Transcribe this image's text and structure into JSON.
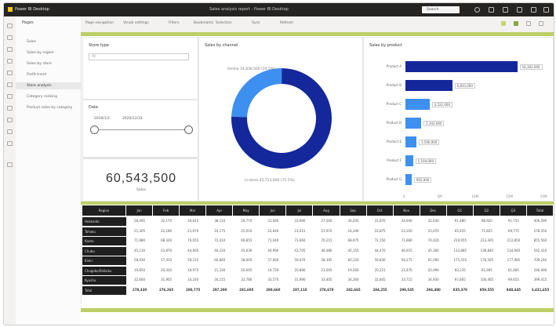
{
  "window": {
    "app_name": "Power BI Desktop",
    "title": "Sales analysis report - Power BI Desktop",
    "search_placeholder": "Search"
  },
  "pages": {
    "header": "Pages",
    "items": [
      "Sales",
      "Sales by region",
      "Sales by store",
      "Profit trend",
      "Store analysis",
      "Category ranking",
      "Product sales by category"
    ],
    "active_index": 4
  },
  "commandbar": {
    "items": [
      "Page navigation",
      "Visual settings",
      "Filters",
      "Bookmarks",
      "Selection",
      "Sync",
      "Refresh"
    ]
  },
  "slicer": {
    "title": "Store type",
    "dropdown_value": "All",
    "range_title": "Date",
    "range_min": "2019/1/1",
    "range_max": "2020/12/31"
  },
  "kpi": {
    "value": "60,543,500",
    "label": "Sales"
  },
  "donut": {
    "title": "Sales by channel",
    "segments": [
      {
        "label": "Online",
        "value": 24.5,
        "color": "#3d8ff0"
      },
      {
        "label": "In-store",
        "value": 75.5,
        "color": "#14279b"
      }
    ],
    "label_top": "Online  14,830,500 (24.5%)",
    "label_bottom": "In-store  45,713,000 (75.5%)"
  },
  "chart_data": {
    "type": "bar",
    "title": "Sales by product",
    "categories": [
      "Product A",
      "Product B",
      "Product C",
      "Product D",
      "Product E",
      "Product F",
      "Product G"
    ],
    "values": [
      16.3,
      6.8,
      3.5,
      2.3,
      1.6,
      1.1,
      0.9
    ],
    "value_labels": [
      "16,302,000",
      "6,833,000",
      "3,522,000",
      "2,343,000",
      "1,566,000",
      "1,104,000",
      "902,000"
    ],
    "colors": [
      "#14279b",
      "#14279b",
      "#3d8ff0",
      "#3d8ff0",
      "#3d8ff0",
      "#3d8ff0",
      "#3d8ff0"
    ],
    "xlim": [
      0,
      20
    ],
    "xticks": [
      "0",
      "5M",
      "10M",
      "15M",
      "20M"
    ]
  },
  "table": {
    "columns": [
      "Region",
      "Jan",
      "Feb",
      "Mar",
      "Apr",
      "May",
      "Jun",
      "Jul",
      "Aug",
      "Sep",
      "Oct",
      "Nov",
      "Dec",
      "Q1",
      "Q2",
      "Q3",
      "Total"
    ],
    "rows": [
      {
        "label": "Hokkaido",
        "values": [
          "28,495",
          "32,170",
          "30,815",
          "38,110",
          "29,770",
          "31,040",
          "33,990",
          "27,560",
          "30,205",
          "31,870",
          "34,940",
          "32,630",
          "91,480",
          "98,920",
          "91,755",
          "400,590"
        ]
      },
      {
        "label": "Tohoku",
        "values": [
          "21,305",
          "22,180",
          "21,970",
          "24,175",
          "25,010",
          "22,640",
          "23,415",
          "21,970",
          "24,390",
          "22,875",
          "23,350",
          "25,070",
          "65,455",
          "71,825",
          "69,775",
          "278,350"
        ]
      },
      {
        "label": "Kanto",
        "values": [
          "71,980",
          "68,320",
          "70,655",
          "72,410",
          "69,855",
          "71,040",
          "73,660",
          "70,215",
          "68,975",
          "72,150",
          "71,880",
          "74,420",
          "210,955",
          "213,305",
          "212,850",
          "855,560"
        ]
      },
      {
        "label": "Chubu",
        "values": [
          "45,110",
          "43,870",
          "44,905",
          "46,220",
          "45,630",
          "44,990",
          "43,705",
          "46,080",
          "45,155",
          "44,470",
          "46,915",
          "45,360",
          "133,885",
          "136,840",
          "134,940",
          "542,410"
        ]
      },
      {
        "label": "Kinki",
        "values": [
          "58,930",
          "57,410",
          "59,215",
          "60,840",
          "58,005",
          "57,660",
          "59,470",
          "58,395",
          "60,120",
          "59,830",
          "58,275",
          "61,090",
          "175,555",
          "176,505",
          "177,985",
          "709,240"
        ]
      },
      {
        "label": "Chugoku/Shikoku",
        "values": [
          "19,850",
          "20,410",
          "19,975",
          "21,330",
          "20,645",
          "19,720",
          "20,880",
          "21,045",
          "19,560",
          "20,215",
          "21,470",
          "20,990",
          "60,235",
          "61,695",
          "61,485",
          "246,090"
        ]
      },
      {
        "label": "Kyushu",
        "values": [
          "32,660",
          "31,905",
          "33,240",
          "34,115",
          "32,780",
          "33,570",
          "31,990",
          "33,405",
          "34,260",
          "32,845",
          "33,715",
          "34,930",
          "97,805",
          "100,465",
          "99,655",
          "399,415"
        ]
      },
      {
        "label": "Total",
        "values": [
          "278,330",
          "276,265",
          "280,775",
          "297,200",
          "281,695",
          "280,660",
          "287,110",
          "278,670",
          "282,665",
          "284,255",
          "290,545",
          "294,490",
          "835,370",
          "859,555",
          "848,445",
          "3,431,655"
        ]
      }
    ]
  },
  "colors": {
    "accent_green": "#bccf67",
    "dark_blue": "#14279b",
    "light_blue": "#3d8ff0",
    "titlebar": "#252423"
  }
}
